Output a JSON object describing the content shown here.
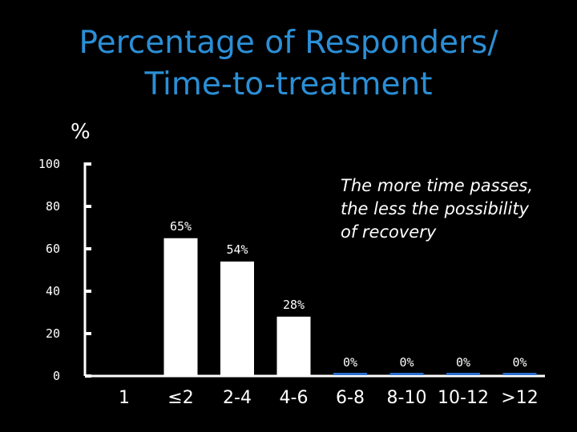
{
  "title_line1": "Percentage of Responders/",
  "title_line2": "Time-to-treatment",
  "unit_label": "%",
  "annotation": {
    "line1": "The more time passes,",
    "line2": "the less the possibility",
    "line3": "of recovery"
  },
  "colors": {
    "background": "#000000",
    "title": "#2b8fd6",
    "bar": "#ffffff",
    "zero_bar": "#2b6fd0",
    "axis": "#ffffff",
    "text": "#ffffff"
  },
  "chart_data": {
    "type": "bar",
    "title": "Percentage of Responders/ Time-to-treatment",
    "ylabel": "%",
    "xlabel": "",
    "ylim": [
      0,
      100
    ],
    "yticks": [
      0,
      20,
      40,
      60,
      80,
      100
    ],
    "categories": [
      "1",
      "≤2",
      "2-4",
      "4-6",
      "6-8",
      "8-10",
      "10-12",
      ">12"
    ],
    "values": [
      null,
      65,
      54,
      28,
      0,
      0,
      0,
      0
    ],
    "data_labels": [
      "",
      "65%",
      "54%",
      "28%",
      "0%",
      "0%",
      "0%",
      "0%"
    ],
    "grid": false,
    "legend": "none",
    "annotation": "The more time passes, the less the possibility of recovery"
  }
}
